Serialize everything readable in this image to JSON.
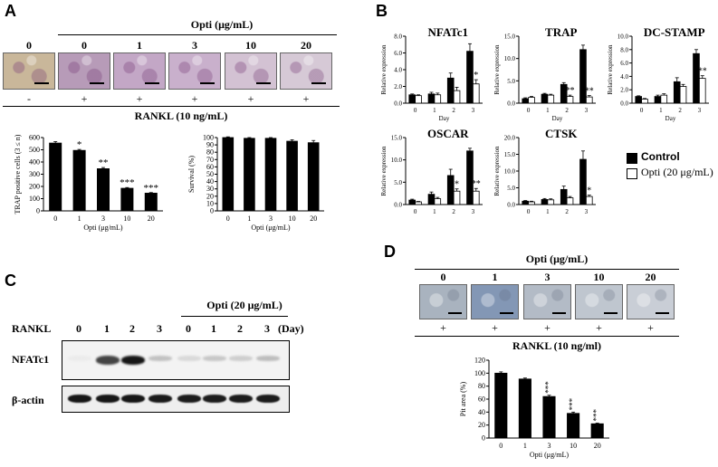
{
  "panels": {
    "a": "A",
    "b": "B",
    "c": "C",
    "d": "D"
  },
  "panelA": {
    "header": "Opti (μg/mL)",
    "doses": [
      "0",
      "0",
      "1",
      "3",
      "10",
      "20"
    ],
    "rankl_signs": [
      "-",
      "+",
      "+",
      "+",
      "+",
      "+"
    ],
    "rankl_label": "RANKL (10 ng/mL)",
    "image_colors": [
      "#c9b79a",
      "#b79bb8",
      "#c3a7c6",
      "#c9b0cc",
      "#d3c2d3",
      "#d6c9d6"
    ]
  },
  "panelB": {
    "legend": [
      "Control",
      "Opti (20 μg/mL)"
    ],
    "colors": {
      "control": "#000000",
      "opti": "#ffffff"
    }
  },
  "panelC": {
    "header": "Opti (20 μg/mL)",
    "row_label": "RANKL",
    "days": [
      "0",
      "1",
      "2",
      "3",
      "0",
      "1",
      "2",
      "3"
    ],
    "day_unit": "(Day)",
    "bands": [
      "NFATc1",
      "β-actin"
    ],
    "nfatc1_intensity": [
      0.02,
      0.75,
      0.95,
      0.2,
      0.1,
      0.18,
      0.15,
      0.22
    ],
    "actin_intensity": [
      0.95,
      0.95,
      0.95,
      0.93,
      0.92,
      0.92,
      0.92,
      0.92
    ]
  },
  "panelD": {
    "header": "Opti (μg/mL)",
    "doses": [
      "0",
      "1",
      "3",
      "10",
      "20"
    ],
    "rankl_signs": [
      "+",
      "+",
      "+",
      "+",
      "+"
    ],
    "rankl_label": "RANKL (10 ng/ml)",
    "image_colors": [
      "#a9b3bf",
      "#8397b5",
      "#b3bbc6",
      "#bfc6cf",
      "#c9ced6"
    ]
  },
  "chart_data": [
    {
      "id": "A-trap",
      "type": "bar",
      "categories": [
        "0",
        "1",
        "3",
        "10",
        "20"
      ],
      "values": [
        555,
        495,
        345,
        185,
        145
      ],
      "errors": [
        12,
        8,
        10,
        6,
        5
      ],
      "sig": [
        "",
        "*",
        "**",
        "***",
        "***"
      ],
      "xlabel": "Opti (μg/mL)",
      "ylabel": "TRAP positive cells (3 ≤ n)",
      "ylim": [
        0,
        600
      ],
      "yticks": [
        0,
        100,
        200,
        300,
        400,
        500,
        600
      ]
    },
    {
      "id": "A-survival",
      "type": "bar",
      "categories": [
        "0",
        "1",
        "3",
        "10",
        "20"
      ],
      "values": [
        100,
        99,
        99,
        95,
        93
      ],
      "errors": [
        1,
        1,
        1,
        2,
        3
      ],
      "sig": [
        "",
        "",
        "",
        "",
        ""
      ],
      "xlabel": "Opti (μg/mL)",
      "ylabel": "Survival (%)",
      "ylim": [
        0,
        100
      ],
      "yticks": [
        0,
        10,
        20,
        30,
        40,
        50,
        60,
        70,
        80,
        90,
        100
      ]
    },
    {
      "id": "B-nfatc1",
      "type": "bar",
      "title": "NFATc1",
      "categories": [
        "0",
        "1",
        "2",
        "3"
      ],
      "xlabel": "Day",
      "ylabel": "Relative expression",
      "ylim": [
        0,
        8
      ],
      "yticks": [
        0,
        2,
        4,
        6,
        8
      ],
      "yformat": 1,
      "series": [
        {
          "name": "Control",
          "values": [
            1.0,
            1.1,
            3.0,
            6.2
          ],
          "errors": [
            0.1,
            0.2,
            0.6,
            0.9
          ]
        },
        {
          "name": "Opti (20 μg/mL)",
          "values": [
            0.9,
            1.0,
            1.5,
            2.3
          ],
          "errors": [
            0.1,
            0.2,
            0.4,
            0.5
          ]
        }
      ],
      "sig": [
        "",
        "",
        "",
        "*"
      ]
    },
    {
      "id": "B-trap",
      "type": "bar",
      "title": "TRAP",
      "categories": [
        "0",
        "1",
        "2",
        "3"
      ],
      "xlabel": "Day",
      "ylabel": "Relative expression",
      "ylim": [
        0,
        15
      ],
      "yticks": [
        0,
        5,
        10,
        15
      ],
      "yformat": 1,
      "series": [
        {
          "name": "Control",
          "values": [
            1.0,
            2.0,
            4.2,
            12.0
          ],
          "errors": [
            0.2,
            0.2,
            0.4,
            1.0
          ]
        },
        {
          "name": "Opti (20 μg/mL)",
          "values": [
            1.3,
            1.8,
            1.5,
            1.4
          ],
          "errors": [
            0.2,
            0.2,
            0.3,
            0.3
          ]
        }
      ],
      "sig": [
        "",
        "",
        "**",
        "**"
      ]
    },
    {
      "id": "B-dcstamp",
      "type": "bar",
      "title": "DC-STAMP",
      "categories": [
        "0",
        "1",
        "2",
        "3"
      ],
      "xlabel": "Day",
      "ylabel": "Relative expression",
      "ylim": [
        0,
        10
      ],
      "yticks": [
        0,
        2,
        4,
        6,
        8,
        10
      ],
      "yformat": 1,
      "series": [
        {
          "name": "Control",
          "values": [
            1.0,
            1.0,
            3.2,
            7.4
          ],
          "errors": [
            0.1,
            0.2,
            0.6,
            0.6
          ]
        },
        {
          "name": "Opti (20 μg/mL)",
          "values": [
            0.6,
            1.2,
            2.5,
            3.7
          ],
          "errors": [
            0.1,
            0.2,
            0.3,
            0.4
          ]
        }
      ],
      "sig": [
        "",
        "",
        "",
        "**"
      ]
    },
    {
      "id": "B-oscar",
      "type": "bar",
      "title": "OSCAR",
      "categories": [
        "0",
        "1",
        "2",
        "3"
      ],
      "xlabel": "Day",
      "ylabel": "Relative expression",
      "ylim": [
        0,
        15
      ],
      "yticks": [
        0,
        5,
        10,
        15
      ],
      "yformat": 1,
      "series": [
        {
          "name": "Control",
          "values": [
            1.0,
            2.3,
            6.5,
            12.0
          ],
          "errors": [
            0.2,
            0.5,
            1.4,
            0.6
          ]
        },
        {
          "name": "Opti (20 μg/mL)",
          "values": [
            0.6,
            1.3,
            3.0,
            3.0
          ],
          "errors": [
            0.1,
            0.3,
            0.5,
            0.6
          ]
        }
      ],
      "sig": [
        "",
        "",
        "*",
        "**"
      ]
    },
    {
      "id": "B-ctsk",
      "type": "bar",
      "title": "CTSK",
      "categories": [
        "0",
        "1",
        "2",
        "3"
      ],
      "xlabel": "Day",
      "ylabel": "Relative expression",
      "ylim": [
        0,
        20
      ],
      "yticks": [
        0,
        5,
        10,
        15,
        20
      ],
      "yformat": 1,
      "series": [
        {
          "name": "Control",
          "values": [
            1.0,
            1.5,
            4.5,
            13.5
          ],
          "errors": [
            0.2,
            0.3,
            1.0,
            2.5
          ]
        },
        {
          "name": "Opti (20 μg/mL)",
          "values": [
            0.8,
            1.4,
            2.0,
            2.4
          ],
          "errors": [
            0.2,
            0.3,
            0.4,
            0.4
          ]
        }
      ],
      "sig": [
        "",
        "",
        "",
        "*"
      ]
    },
    {
      "id": "D-pit",
      "type": "bar",
      "categories": [
        "0",
        "1",
        "3",
        "10",
        "20"
      ],
      "values": [
        100,
        91,
        64,
        38,
        22
      ],
      "errors": [
        2,
        1.5,
        2,
        2,
        1
      ],
      "sig": [
        "",
        "",
        "***",
        "***",
        "***"
      ],
      "xlabel": "Opti (μg/mL)",
      "ylabel": "Pit area (%)",
      "ylim": [
        0,
        120
      ],
      "yticks": [
        0,
        20,
        40,
        60,
        80,
        100,
        120
      ]
    }
  ]
}
